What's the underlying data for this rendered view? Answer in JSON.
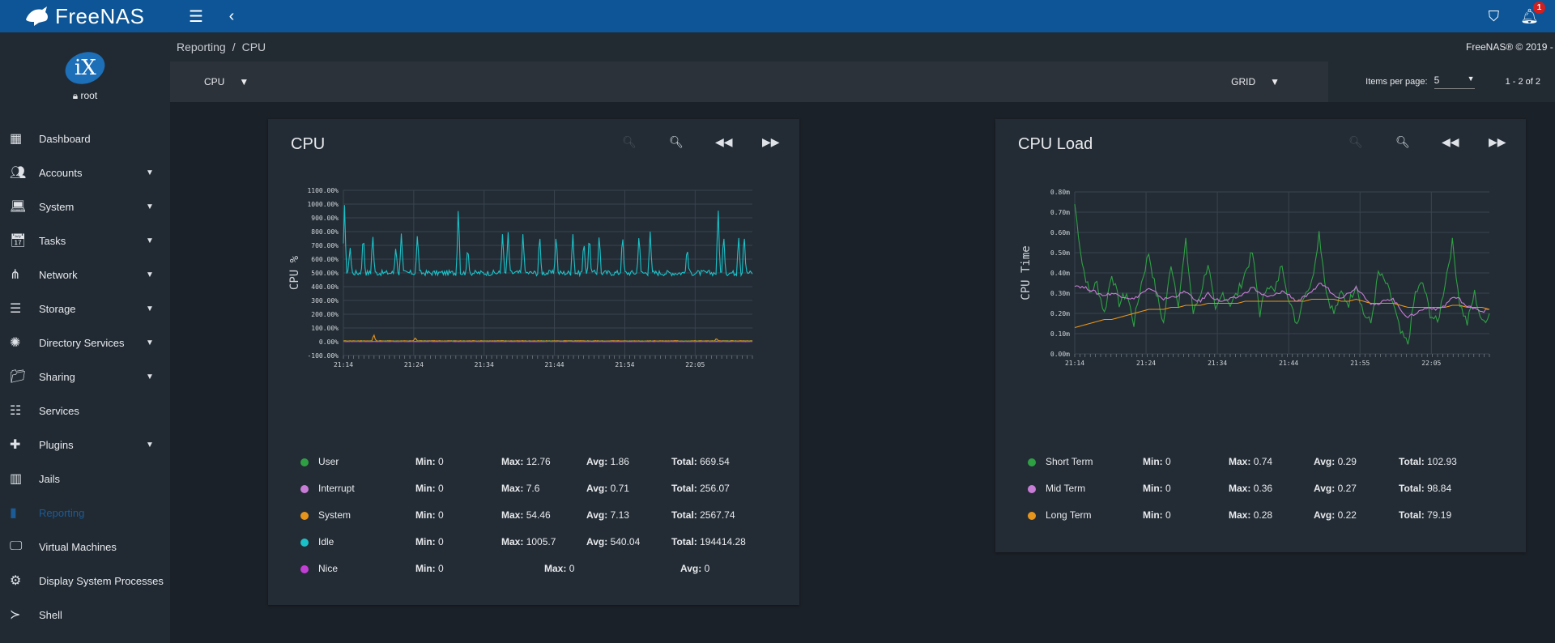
{
  "topbar": {
    "brand": "FreeNAS",
    "notification_count": "1",
    "icons": [
      "menu-icon",
      "chevron-left-icon",
      "theme-icon",
      "bell-icon"
    ]
  },
  "sidebar": {
    "user": "root",
    "logo_text": "iX",
    "items": [
      {
        "label": "Dashboard",
        "icon": "dashboard-icon",
        "caret": false
      },
      {
        "label": "Accounts",
        "icon": "people-icon",
        "caret": true
      },
      {
        "label": "System",
        "icon": "laptop-icon",
        "caret": true
      },
      {
        "label": "Tasks",
        "icon": "calendar-icon",
        "caret": true
      },
      {
        "label": "Network",
        "icon": "network-icon",
        "caret": true
      },
      {
        "label": "Storage",
        "icon": "storage-icon",
        "caret": true
      },
      {
        "label": "Directory Services",
        "icon": "directory-icon",
        "caret": true
      },
      {
        "label": "Sharing",
        "icon": "folder-share-icon",
        "caret": true
      },
      {
        "label": "Services",
        "icon": "sliders-icon",
        "caret": false
      },
      {
        "label": "Plugins",
        "icon": "puzzle-icon",
        "caret": true
      },
      {
        "label": "Jails",
        "icon": "jail-icon",
        "caret": false
      },
      {
        "label": "Reporting",
        "icon": "chart-icon",
        "caret": false,
        "active": true
      },
      {
        "label": "Virtual Machines",
        "icon": "monitor-icon",
        "caret": false
      },
      {
        "label": "Display System Processes",
        "icon": "processes-icon",
        "caret": false
      },
      {
        "label": "Shell",
        "icon": "terminal-icon",
        "caret": false
      }
    ]
  },
  "breadcrumb": {
    "parent": "Reporting",
    "separator": "/",
    "current": "CPU"
  },
  "copyright": "FreeNAS® © 2019 -",
  "toolbar": {
    "report_select": "CPU",
    "layout_select": "GRID",
    "items_per_page_label": "Items per page:",
    "items_per_page_value": "5",
    "range": "1 - 2 of 2"
  },
  "cards": [
    {
      "title": "CPU",
      "legend": [
        {
          "name": "User",
          "color": "#2ea043",
          "min": "0",
          "max": "12.76",
          "avg": "1.86",
          "total": "669.54"
        },
        {
          "name": "Interrupt",
          "color": "#c77dd6",
          "min": "0",
          "max": "7.6",
          "avg": "0.71",
          "total": "256.07"
        },
        {
          "name": "System",
          "color": "#e6951c",
          "min": "0",
          "max": "54.46",
          "avg": "7.13",
          "total": "2567.74"
        },
        {
          "name": "Idle",
          "color": "#1bc1c8",
          "min": "0",
          "max": "1005.7",
          "avg": "540.04",
          "total": "194414.28"
        },
        {
          "name": "Nice",
          "color": "#c23fd4",
          "min": "0",
          "max": "0",
          "avg": "0"
        }
      ]
    },
    {
      "title": "CPU Load",
      "legend": [
        {
          "name": "Short Term",
          "color": "#2ea043",
          "min": "0",
          "max": "0.74",
          "avg": "0.29",
          "total": "102.93"
        },
        {
          "name": "Mid Term",
          "color": "#c77dd6",
          "min": "0",
          "max": "0.36",
          "avg": "0.27",
          "total": "98.84"
        },
        {
          "name": "Long Term",
          "color": "#e6951c",
          "min": "0",
          "max": "0.28",
          "avg": "0.22",
          "total": "79.19"
        }
      ]
    }
  ],
  "labels": {
    "min": "Min:",
    "max": "Max:",
    "avg": "Avg:",
    "total": "Total:"
  },
  "chart_data": [
    {
      "type": "line",
      "title": "CPU",
      "ylabel": "CPU %",
      "ylim": [
        -100,
        1100
      ],
      "yticks": [
        "1100.00%",
        "1000.00%",
        "900.00%",
        "800.00%",
        "700.00%",
        "600.00%",
        "500.00%",
        "400.00%",
        "300.00%",
        "200.00%",
        "100.00%",
        "0.00%",
        "-100.00%"
      ],
      "xticks": [
        "21:14",
        "21:24",
        "21:34",
        "21:44",
        "21:54",
        "22:05"
      ],
      "series": [
        {
          "name": "Idle",
          "color": "#1bc1c8",
          "baseline": 500,
          "spikes": [
            {
              "t": 0.2,
              "v": 1000
            },
            {
              "t": 1.2,
              "v": 700
            },
            {
              "t": 3.6,
              "v": 800
            },
            {
              "t": 5.3,
              "v": 800
            },
            {
              "t": 9.5,
              "v": 700
            },
            {
              "t": 10.5,
              "v": 800
            },
            {
              "t": 13.4,
              "v": 800
            },
            {
              "t": 20.8,
              "v": 1005.7
            },
            {
              "t": 22.5,
              "v": 700
            },
            {
              "t": 28.8,
              "v": 800
            },
            {
              "t": 29.8,
              "v": 800
            },
            {
              "t": 32.5,
              "v": 800
            },
            {
              "t": 35.5,
              "v": 800
            },
            {
              "t": 38.5,
              "v": 800
            },
            {
              "t": 41.5,
              "v": 800
            },
            {
              "t": 43.5,
              "v": 750
            },
            {
              "t": 44.5,
              "v": 800
            },
            {
              "t": 46.3,
              "v": 800
            },
            {
              "t": 50.5,
              "v": 800
            },
            {
              "t": 53.5,
              "v": 800
            },
            {
              "t": 55.5,
              "v": 800
            },
            {
              "t": 62.2,
              "v": 700
            },
            {
              "t": 67.8,
              "v": 1000
            },
            {
              "t": 68.8,
              "v": 800
            },
            {
              "t": 71.5,
              "v": 780
            },
            {
              "t": 72.5,
              "v": 800
            }
          ]
        },
        {
          "name": "System",
          "color": "#e6951c",
          "baseline": 5,
          "spikes": [
            {
              "t": 5.5,
              "v": 54.46
            },
            {
              "t": 13,
              "v": 30
            },
            {
              "t": 67.5,
              "v": 25
            }
          ]
        },
        {
          "name": "User",
          "color": "#2ea043",
          "baseline": 2,
          "spikes": []
        },
        {
          "name": "Interrupt",
          "color": "#c77dd6",
          "baseline": 1,
          "spikes": []
        },
        {
          "name": "Nice",
          "color": "#c23fd4",
          "baseline": 0,
          "spikes": []
        }
      ],
      "x_range_minutes": [
        0,
        74
      ]
    },
    {
      "type": "line",
      "title": "CPU Load",
      "ylabel": "CPU Time",
      "ylim": [
        0,
        0.8
      ],
      "yticks": [
        "0.80m",
        "0.70m",
        "0.60m",
        "0.50m",
        "0.40m",
        "0.30m",
        "0.20m",
        "0.10m",
        "0.00m"
      ],
      "xticks": [
        "21:14",
        "21:24",
        "21:34",
        "21:44",
        "21:55",
        "22:05"
      ],
      "series": [
        {
          "name": "Short Term",
          "color": "#2ea043",
          "points": [
            0.74,
            0.45,
            0.3,
            0.35,
            0.2,
            0.4,
            0.25,
            0.3,
            0.15,
            0.35,
            0.5,
            0.3,
            0.15,
            0.45,
            0.25,
            0.55,
            0.2,
            0.3,
            0.45,
            0.2,
            0.3,
            0.25,
            0.3,
            0.4,
            0.5,
            0.2,
            0.35,
            0.3,
            0.45,
            0.25,
            0.15,
            0.3,
            0.35,
            0.6,
            0.3,
            0.2,
            0.3,
            0.25,
            0.35,
            0.2,
            0.15,
            0.4,
            0.35,
            0.25,
            0.1,
            0.05,
            0.3,
            0.35,
            0.2,
            0.15,
            0.35,
            0.55,
            0.25,
            0.15,
            0.3,
            0.15,
            0.2
          ]
        },
        {
          "name": "Mid Term",
          "color": "#c77dd6",
          "points": [
            0.34,
            0.33,
            0.32,
            0.3,
            0.29,
            0.3,
            0.29,
            0.28,
            0.27,
            0.3,
            0.32,
            0.3,
            0.27,
            0.28,
            0.29,
            0.31,
            0.27,
            0.26,
            0.3,
            0.27,
            0.26,
            0.27,
            0.28,
            0.3,
            0.33,
            0.3,
            0.28,
            0.29,
            0.31,
            0.29,
            0.26,
            0.28,
            0.3,
            0.35,
            0.33,
            0.29,
            0.28,
            0.3,
            0.33,
            0.29,
            0.25,
            0.24,
            0.27,
            0.27,
            0.22,
            0.18,
            0.2,
            0.22,
            0.23,
            0.22,
            0.24,
            0.28,
            0.27,
            0.23,
            0.23,
            0.21,
            0.22
          ]
        },
        {
          "name": "Long Term",
          "color": "#e6951c",
          "points": [
            0.13,
            0.14,
            0.15,
            0.16,
            0.17,
            0.17,
            0.18,
            0.19,
            0.2,
            0.21,
            0.22,
            0.22,
            0.22,
            0.23,
            0.23,
            0.24,
            0.24,
            0.24,
            0.25,
            0.25,
            0.25,
            0.25,
            0.25,
            0.26,
            0.26,
            0.26,
            0.26,
            0.26,
            0.26,
            0.26,
            0.26,
            0.26,
            0.27,
            0.27,
            0.27,
            0.27,
            0.26,
            0.26,
            0.27,
            0.26,
            0.25,
            0.25,
            0.25,
            0.25,
            0.24,
            0.23,
            0.23,
            0.23,
            0.23,
            0.23,
            0.23,
            0.24,
            0.24,
            0.23,
            0.23,
            0.23,
            0.22
          ]
        }
      ]
    }
  ]
}
